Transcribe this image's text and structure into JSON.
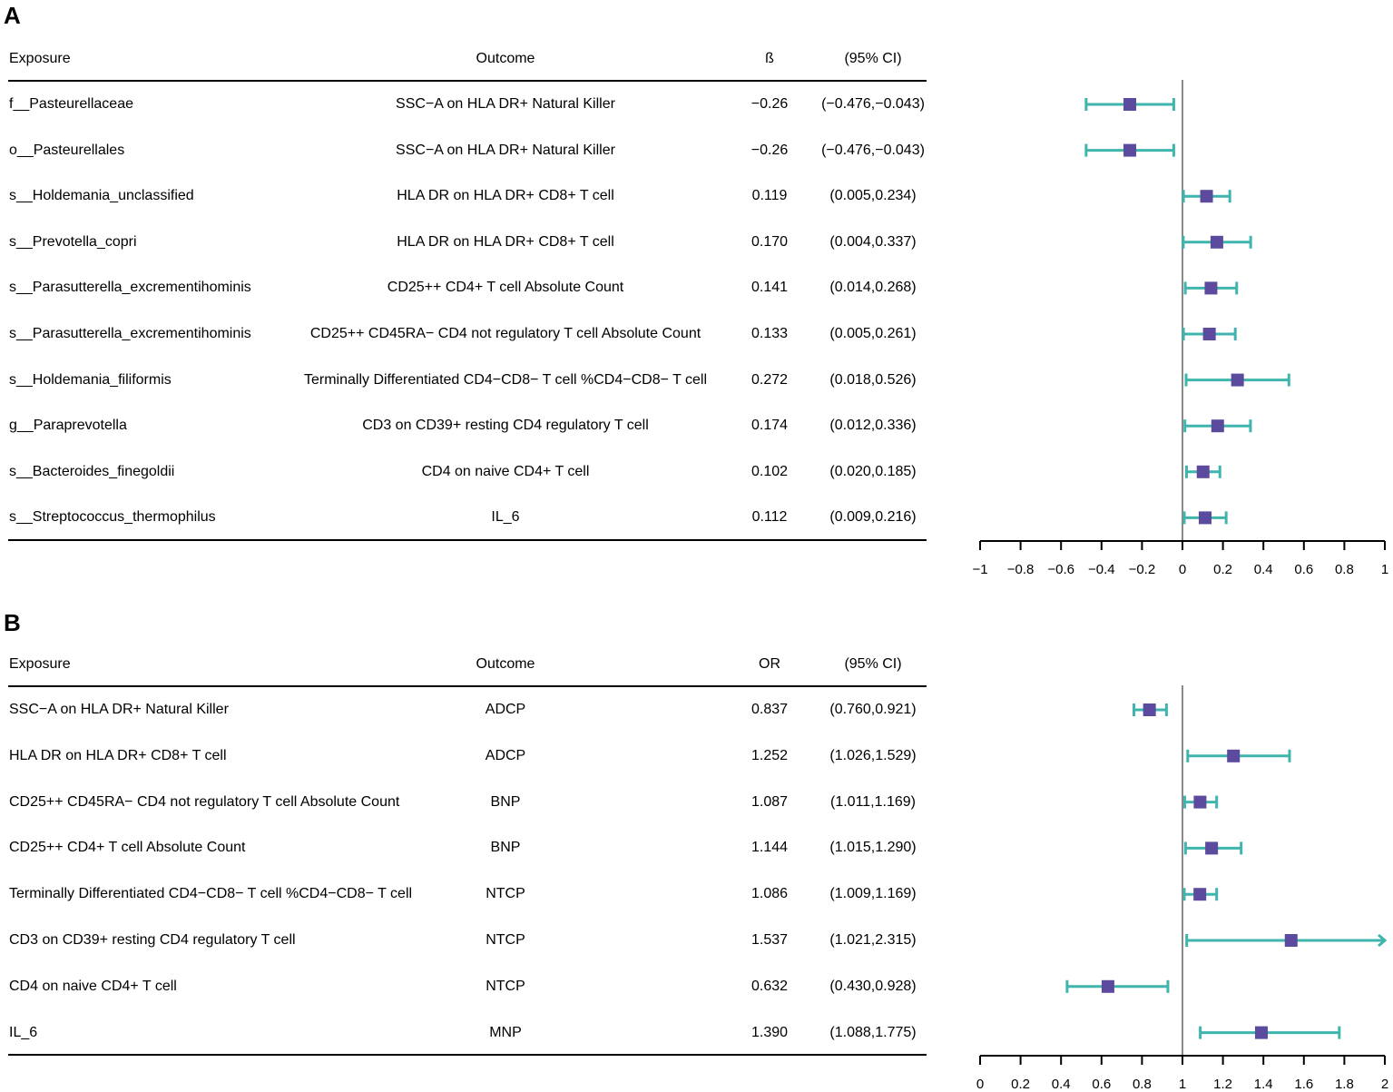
{
  "panels": [
    {
      "label": "A",
      "headers": {
        "exposure": "Exposure",
        "outcome": "Outcome",
        "estimate": "ß",
        "ci": "(95% CI)"
      },
      "rows": [
        {
          "exposure": "f__Pasteurellaceae",
          "outcome": "SSC−A on HLA DR+ Natural Killer",
          "estimate": "−0.26",
          "ci": "(−0.476,−0.043)"
        },
        {
          "exposure": "o__Pasteurellales",
          "outcome": "SSC−A on HLA DR+ Natural Killer",
          "estimate": "−0.26",
          "ci": "(−0.476,−0.043)"
        },
        {
          "exposure": "s__Holdemania_unclassified",
          "outcome": "HLA DR on HLA DR+ CD8+ T cell",
          "estimate": "0.119",
          "ci": "(0.005,0.234)"
        },
        {
          "exposure": "s__Prevotella_copri",
          "outcome": "HLA DR on HLA DR+ CD8+ T cell",
          "estimate": "0.170",
          "ci": "(0.004,0.337)"
        },
        {
          "exposure": "s__Parasutterella_excrementihominis",
          "outcome": "CD25++ CD4+ T cell Absolute Count",
          "estimate": "0.141",
          "ci": "(0.014,0.268)"
        },
        {
          "exposure": "s__Parasutterella_excrementihominis",
          "outcome": "CD25++ CD45RA− CD4 not regulatory T cell Absolute Count",
          "estimate": "0.133",
          "ci": "(0.005,0.261)"
        },
        {
          "exposure": "s__Holdemania_filiformis",
          "outcome": "Terminally Differentiated CD4−CD8− T cell %CD4−CD8− T cell",
          "estimate": "0.272",
          "ci": "(0.018,0.526)"
        },
        {
          "exposure": "g__Paraprevotella",
          "outcome": "CD3 on CD39+ resting CD4 regulatory T cell",
          "estimate": "0.174",
          "ci": "(0.012,0.336)"
        },
        {
          "exposure": "s__Bacteroides_finegoldii",
          "outcome": "CD4 on naive CD4+ T cell",
          "estimate": "0.102",
          "ci": "(0.020,0.185)"
        },
        {
          "exposure": "s__Streptococcus_thermophilus",
          "outcome": "IL_6",
          "estimate": "0.112",
          "ci": "(0.009,0.216)"
        }
      ]
    },
    {
      "label": "B",
      "headers": {
        "exposure": "Exposure",
        "outcome": "Outcome",
        "estimate": "OR",
        "ci": "(95% CI)"
      },
      "rows": [
        {
          "exposure": "SSC−A on HLA DR+ Natural Killer",
          "outcome": "ADCP",
          "estimate": "0.837",
          "ci": "(0.760,0.921)"
        },
        {
          "exposure": "HLA DR on HLA DR+ CD8+ T cell",
          "outcome": "ADCP",
          "estimate": "1.252",
          "ci": "(1.026,1.529)"
        },
        {
          "exposure": "CD25++ CD45RA− CD4 not regulatory T cell Absolute Count",
          "outcome": "BNP",
          "estimate": "1.087",
          "ci": "(1.011,1.169)"
        },
        {
          "exposure": "CD25++ CD4+ T cell Absolute Count",
          "outcome": "BNP",
          "estimate": "1.144",
          "ci": "(1.015,1.290)"
        },
        {
          "exposure": "Terminally Differentiated CD4−CD8− T cell %CD4−CD8− T cell",
          "outcome": "NTCP",
          "estimate": "1.086",
          "ci": "(1.009,1.169)"
        },
        {
          "exposure": "CD3 on CD39+ resting CD4 regulatory T cell",
          "outcome": "NTCP",
          "estimate": "1.537",
          "ci": "(1.021,2.315)"
        },
        {
          "exposure": "CD4 on naive CD4+ T cell",
          "outcome": "NTCP",
          "estimate": "0.632",
          "ci": "(0.430,0.928)"
        },
        {
          "exposure": "IL_6",
          "outcome": "MNP",
          "estimate": "1.390",
          "ci": "(1.088,1.775)"
        }
      ]
    }
  ],
  "chart_data": [
    {
      "type": "forest",
      "panel": "A",
      "measure": "beta",
      "xlim": [
        -1,
        1
      ],
      "ref_line": 0,
      "ticks": [
        -1,
        -0.8,
        -0.6,
        -0.4,
        -0.2,
        0,
        0.2,
        0.4,
        0.6,
        0.8,
        1
      ],
      "tick_labels": [
        "−1",
        "−0.8",
        "−0.6",
        "−0.4",
        "−0.2",
        "0",
        "0.2",
        "0.4",
        "0.6",
        "0.8",
        "1"
      ],
      "points": [
        {
          "est": -0.26,
          "lo": -0.476,
          "hi": -0.043
        },
        {
          "est": -0.26,
          "lo": -0.476,
          "hi": -0.043
        },
        {
          "est": 0.119,
          "lo": 0.005,
          "hi": 0.234
        },
        {
          "est": 0.17,
          "lo": 0.004,
          "hi": 0.337
        },
        {
          "est": 0.141,
          "lo": 0.014,
          "hi": 0.268
        },
        {
          "est": 0.133,
          "lo": 0.005,
          "hi": 0.261
        },
        {
          "est": 0.272,
          "lo": 0.018,
          "hi": 0.526
        },
        {
          "est": 0.174,
          "lo": 0.012,
          "hi": 0.336
        },
        {
          "est": 0.102,
          "lo": 0.02,
          "hi": 0.185
        },
        {
          "est": 0.112,
          "lo": 0.009,
          "hi": 0.216
        }
      ]
    },
    {
      "type": "forest",
      "panel": "B",
      "measure": "OR",
      "xlim": [
        0,
        2
      ],
      "ref_line": 1,
      "ticks": [
        0,
        0.2,
        0.4,
        0.6,
        0.8,
        1,
        1.2,
        1.4,
        1.6,
        1.8,
        2
      ],
      "tick_labels": [
        "0",
        "0.2",
        "0.4",
        "0.6",
        "0.8",
        "1",
        "1.2",
        "1.4",
        "1.6",
        "1.8",
        "2"
      ],
      "points": [
        {
          "est": 0.837,
          "lo": 0.76,
          "hi": 0.921
        },
        {
          "est": 1.252,
          "lo": 1.026,
          "hi": 1.529
        },
        {
          "est": 1.087,
          "lo": 1.011,
          "hi": 1.169
        },
        {
          "est": 1.144,
          "lo": 1.015,
          "hi": 1.29
        },
        {
          "est": 1.086,
          "lo": 1.009,
          "hi": 1.169
        },
        {
          "est": 1.537,
          "lo": 1.021,
          "hi": 2.315
        },
        {
          "est": 0.632,
          "lo": 0.43,
          "hi": 0.928
        },
        {
          "est": 1.39,
          "lo": 1.088,
          "hi": 1.775
        }
      ]
    }
  ],
  "colors": {
    "ci_line": "#3fb5ad",
    "point": "#5b4a9e",
    "ref_line": "#8a8a8a",
    "axis": "#000000"
  }
}
